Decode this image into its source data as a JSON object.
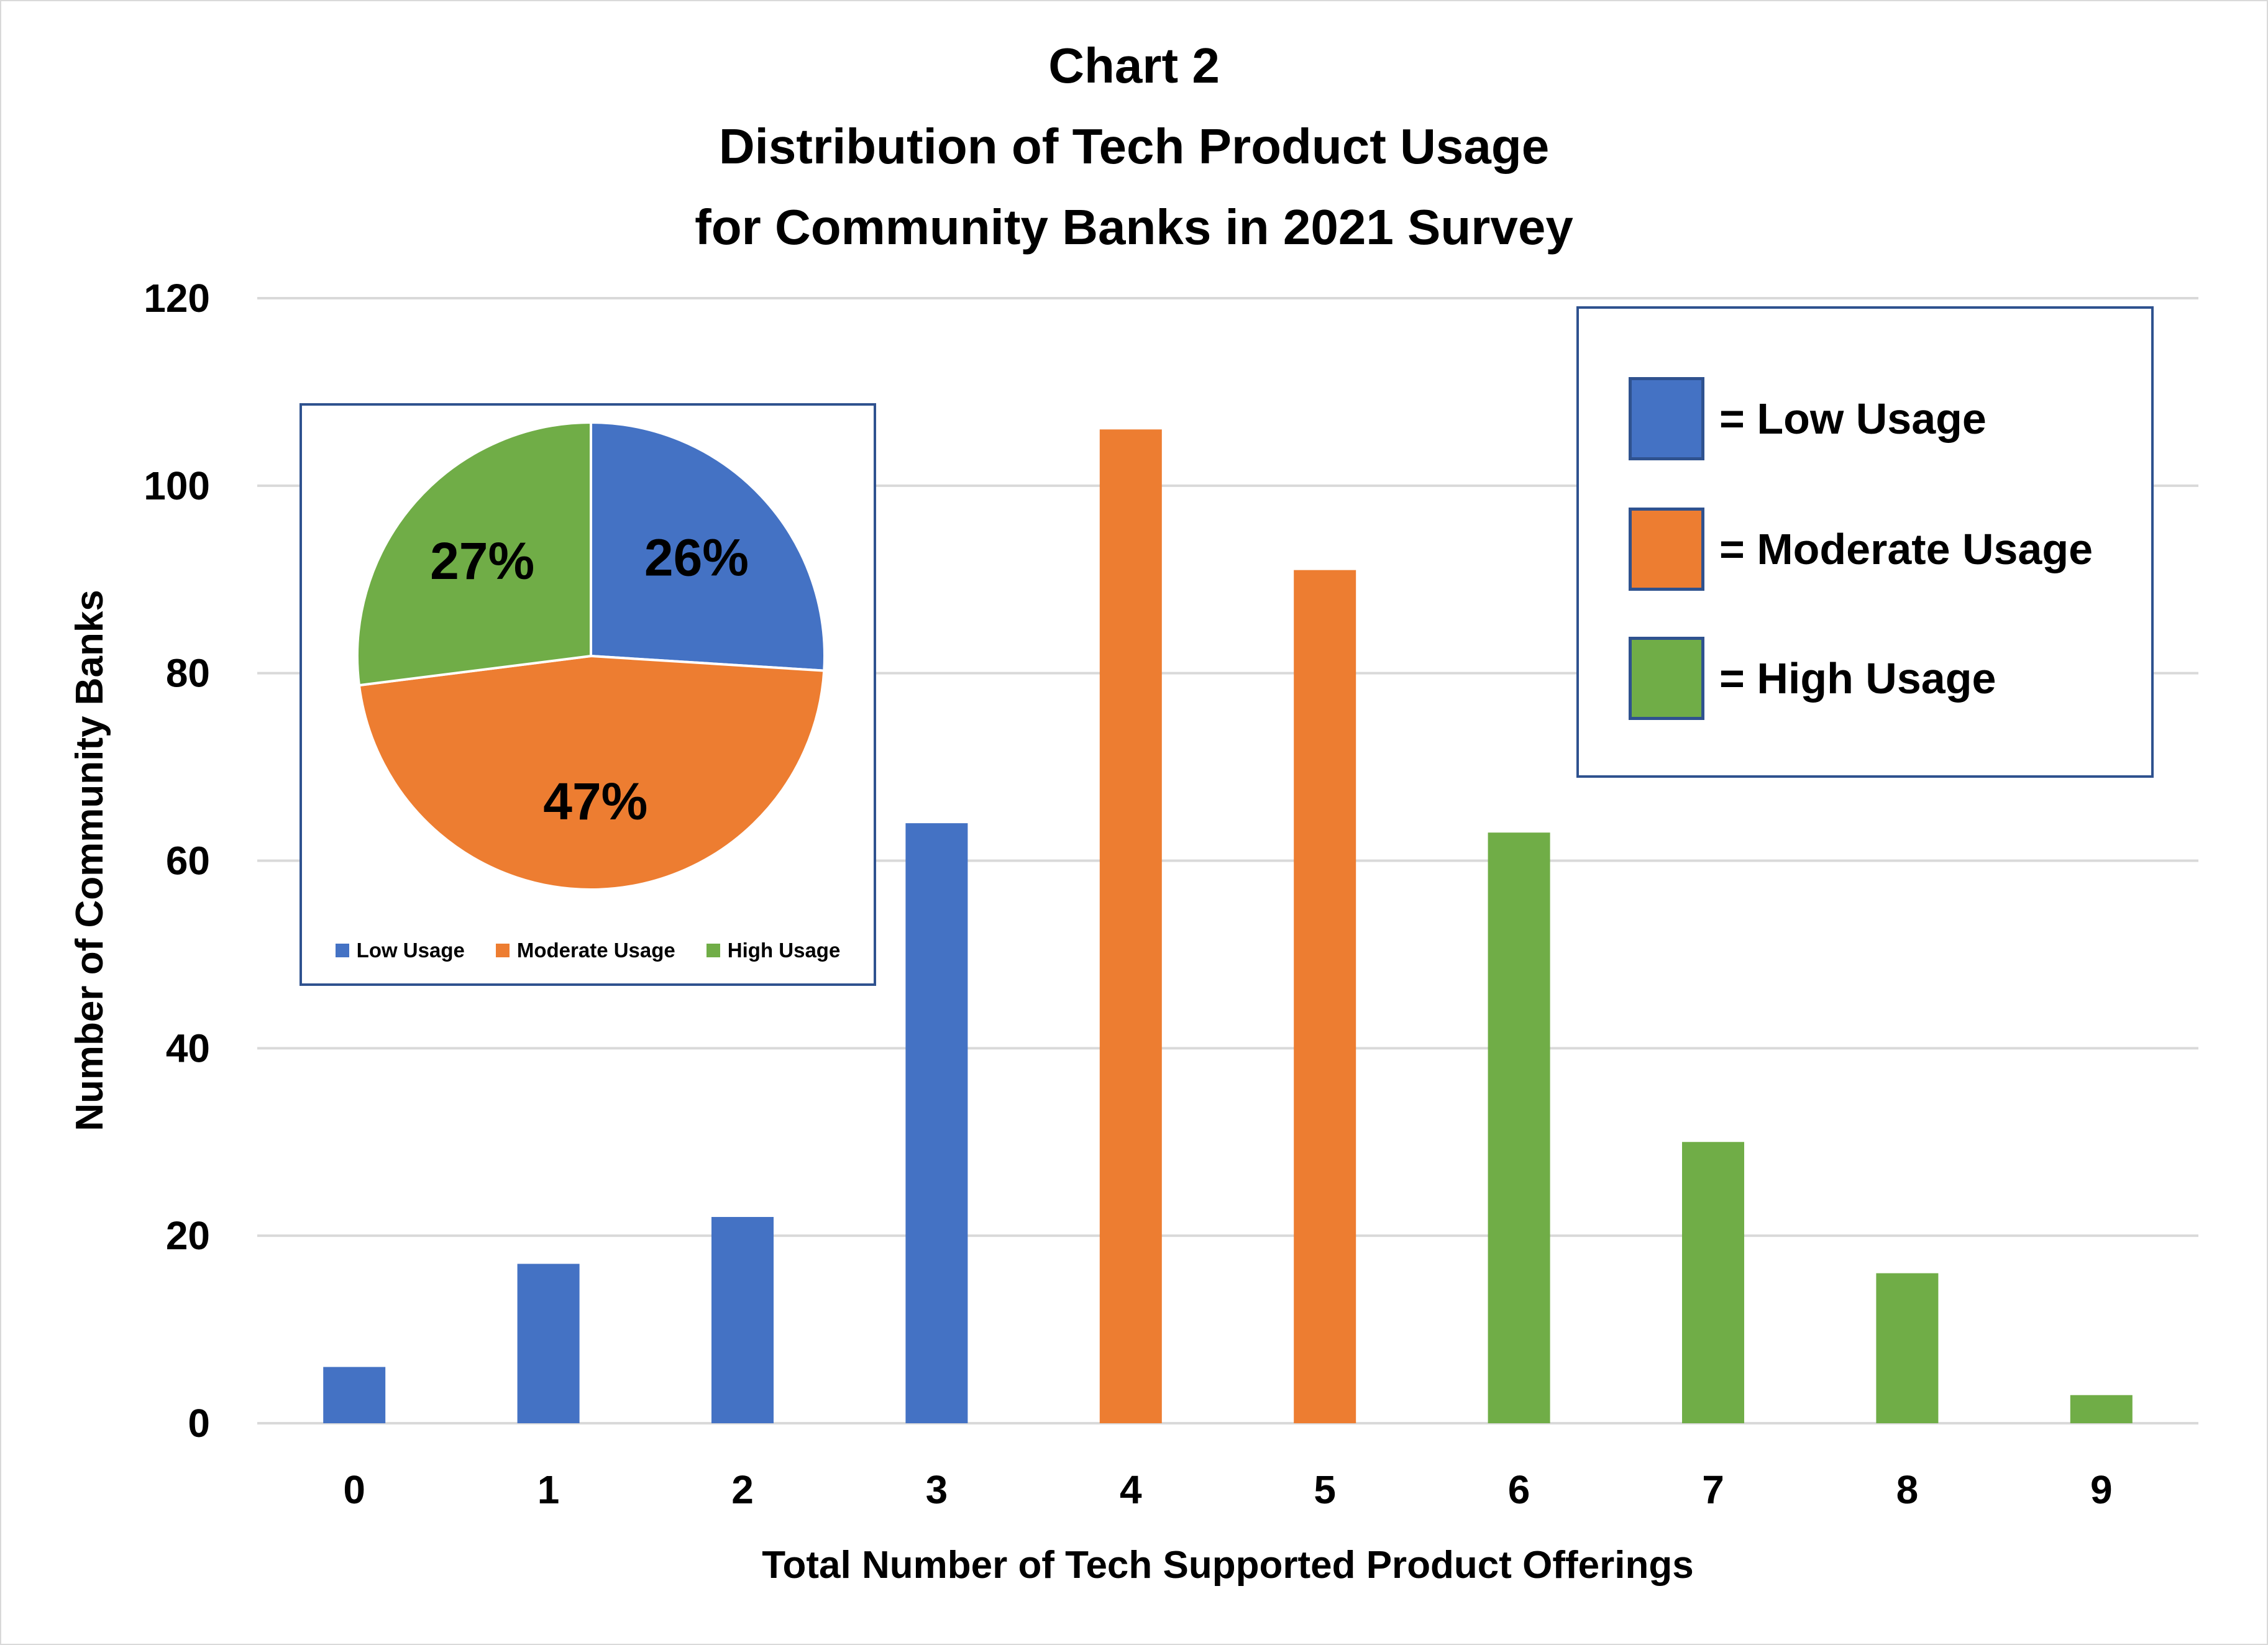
{
  "title_lines": [
    "Chart 2",
    "Distribution of Tech Product Usage",
    "for Community Banks in 2021 Survey"
  ],
  "colors": {
    "low": "#4472c4",
    "moderate": "#ed7d31",
    "high": "#70ad47",
    "border": "#2f528f",
    "grid": "#d9d9d9"
  },
  "legend": {
    "items": [
      {
        "label": "= Low Usage",
        "key": "low"
      },
      {
        "label": "= Moderate Usage",
        "key": "moderate"
      },
      {
        "label": "= High Usage",
        "key": "high"
      }
    ]
  },
  "chart_data": [
    {
      "type": "bar",
      "title": "Chart 2 Distribution of Tech Product Usage for Community Banks in 2021 Survey",
      "xlabel": "Total Number of Tech Supported Product Offerings",
      "ylabel": "Number of Community Banks",
      "categories": [
        "0",
        "1",
        "2",
        "3",
        "4",
        "5",
        "6",
        "7",
        "8",
        "9"
      ],
      "values": [
        6,
        17,
        22,
        64,
        106,
        91,
        63,
        30,
        16,
        3
      ],
      "bar_groups": [
        "low",
        "low",
        "low",
        "low",
        "moderate",
        "moderate",
        "high",
        "high",
        "high",
        "high"
      ],
      "ylim": [
        0,
        120
      ],
      "yticks": [
        0,
        20,
        40,
        60,
        80,
        100,
        120
      ],
      "grid": true,
      "legend_position": "top-right"
    },
    {
      "type": "pie",
      "title": "",
      "labels": [
        "Low Usage",
        "Moderate Usage",
        "High Usage"
      ],
      "values": [
        26,
        47,
        27
      ],
      "data_labels": [
        "26%",
        "47%",
        "27%"
      ],
      "keys": [
        "low",
        "moderate",
        "high"
      ],
      "legend_position": "bottom",
      "placement": "inset top-left"
    }
  ]
}
